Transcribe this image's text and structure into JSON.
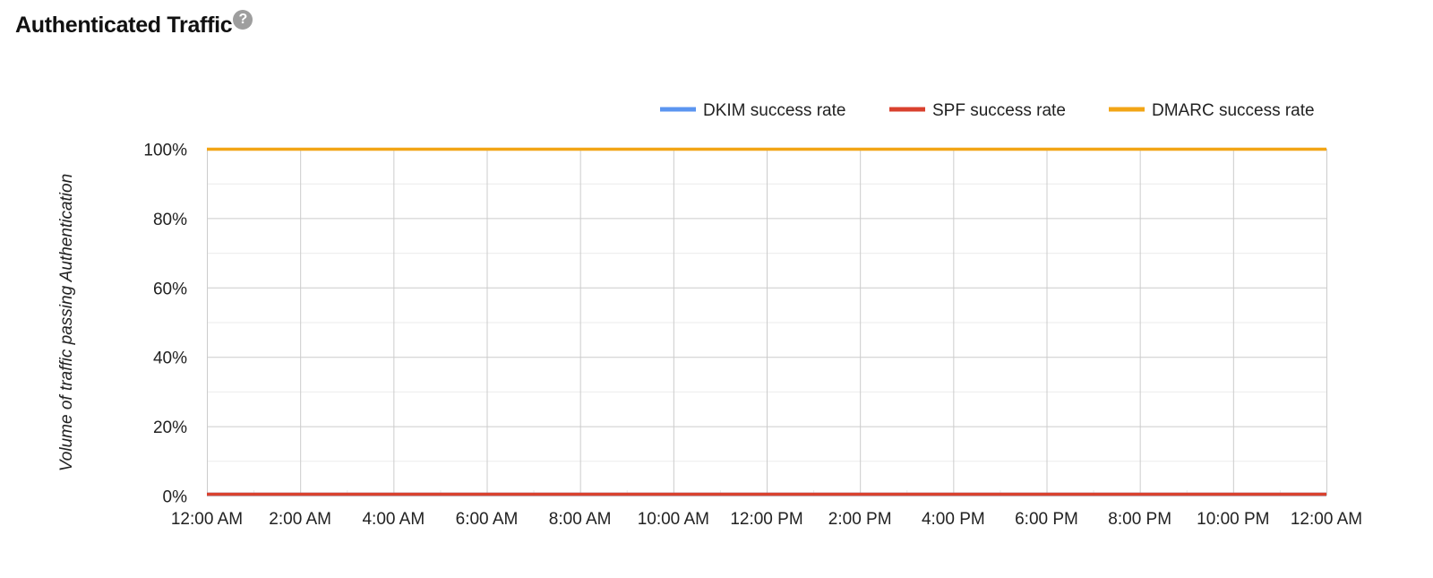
{
  "header": {
    "title": "Authenticated Traffic",
    "help_icon": "question-circle-icon",
    "help_glyph": "?"
  },
  "colors": {
    "dkim": "#5b95f0",
    "spf": "#d9412e",
    "dmarc": "#f2a516",
    "grid_major": "#cccccc",
    "grid_minor": "#ebebeb",
    "text": "#222222"
  },
  "chart_data": {
    "type": "line",
    "title": "Authenticated Traffic",
    "xlabel": "",
    "ylabel": "Volume of traffic passing Authentication",
    "ylim": [
      0,
      100
    ],
    "y_ticks": [
      "0%",
      "20%",
      "40%",
      "60%",
      "80%",
      "100%"
    ],
    "y_tick_values": [
      0,
      20,
      40,
      60,
      80,
      100
    ],
    "x_ticks": [
      "12:00 AM",
      "2:00 AM",
      "4:00 AM",
      "6:00 AM",
      "8:00 AM",
      "10:00 AM",
      "12:00 PM",
      "2:00 PM",
      "4:00 PM",
      "6:00 PM",
      "8:00 PM",
      "10:00 PM",
      "12:00 AM"
    ],
    "x": [
      "12:00 AM",
      "2:00 AM",
      "4:00 AM",
      "6:00 AM",
      "8:00 AM",
      "10:00 AM",
      "12:00 PM",
      "2:00 PM",
      "4:00 PM",
      "6:00 PM",
      "8:00 PM",
      "10:00 PM",
      "12:00 AM"
    ],
    "grid": true,
    "legend_position": "top-right",
    "series": [
      {
        "name": "DKIM success rate",
        "color": "#5b95f0",
        "values": [
          0,
          0,
          0,
          0,
          0,
          0,
          0,
          0,
          0,
          0,
          0,
          0,
          0
        ]
      },
      {
        "name": "SPF success rate",
        "color": "#d9412e",
        "values": [
          0,
          0,
          0,
          0,
          0,
          0,
          0,
          0,
          0,
          0,
          0,
          0,
          0
        ]
      },
      {
        "name": "DMARC success rate",
        "color": "#f2a516",
        "values": [
          100,
          100,
          100,
          100,
          100,
          100,
          100,
          100,
          100,
          100,
          100,
          100,
          100
        ]
      }
    ]
  }
}
